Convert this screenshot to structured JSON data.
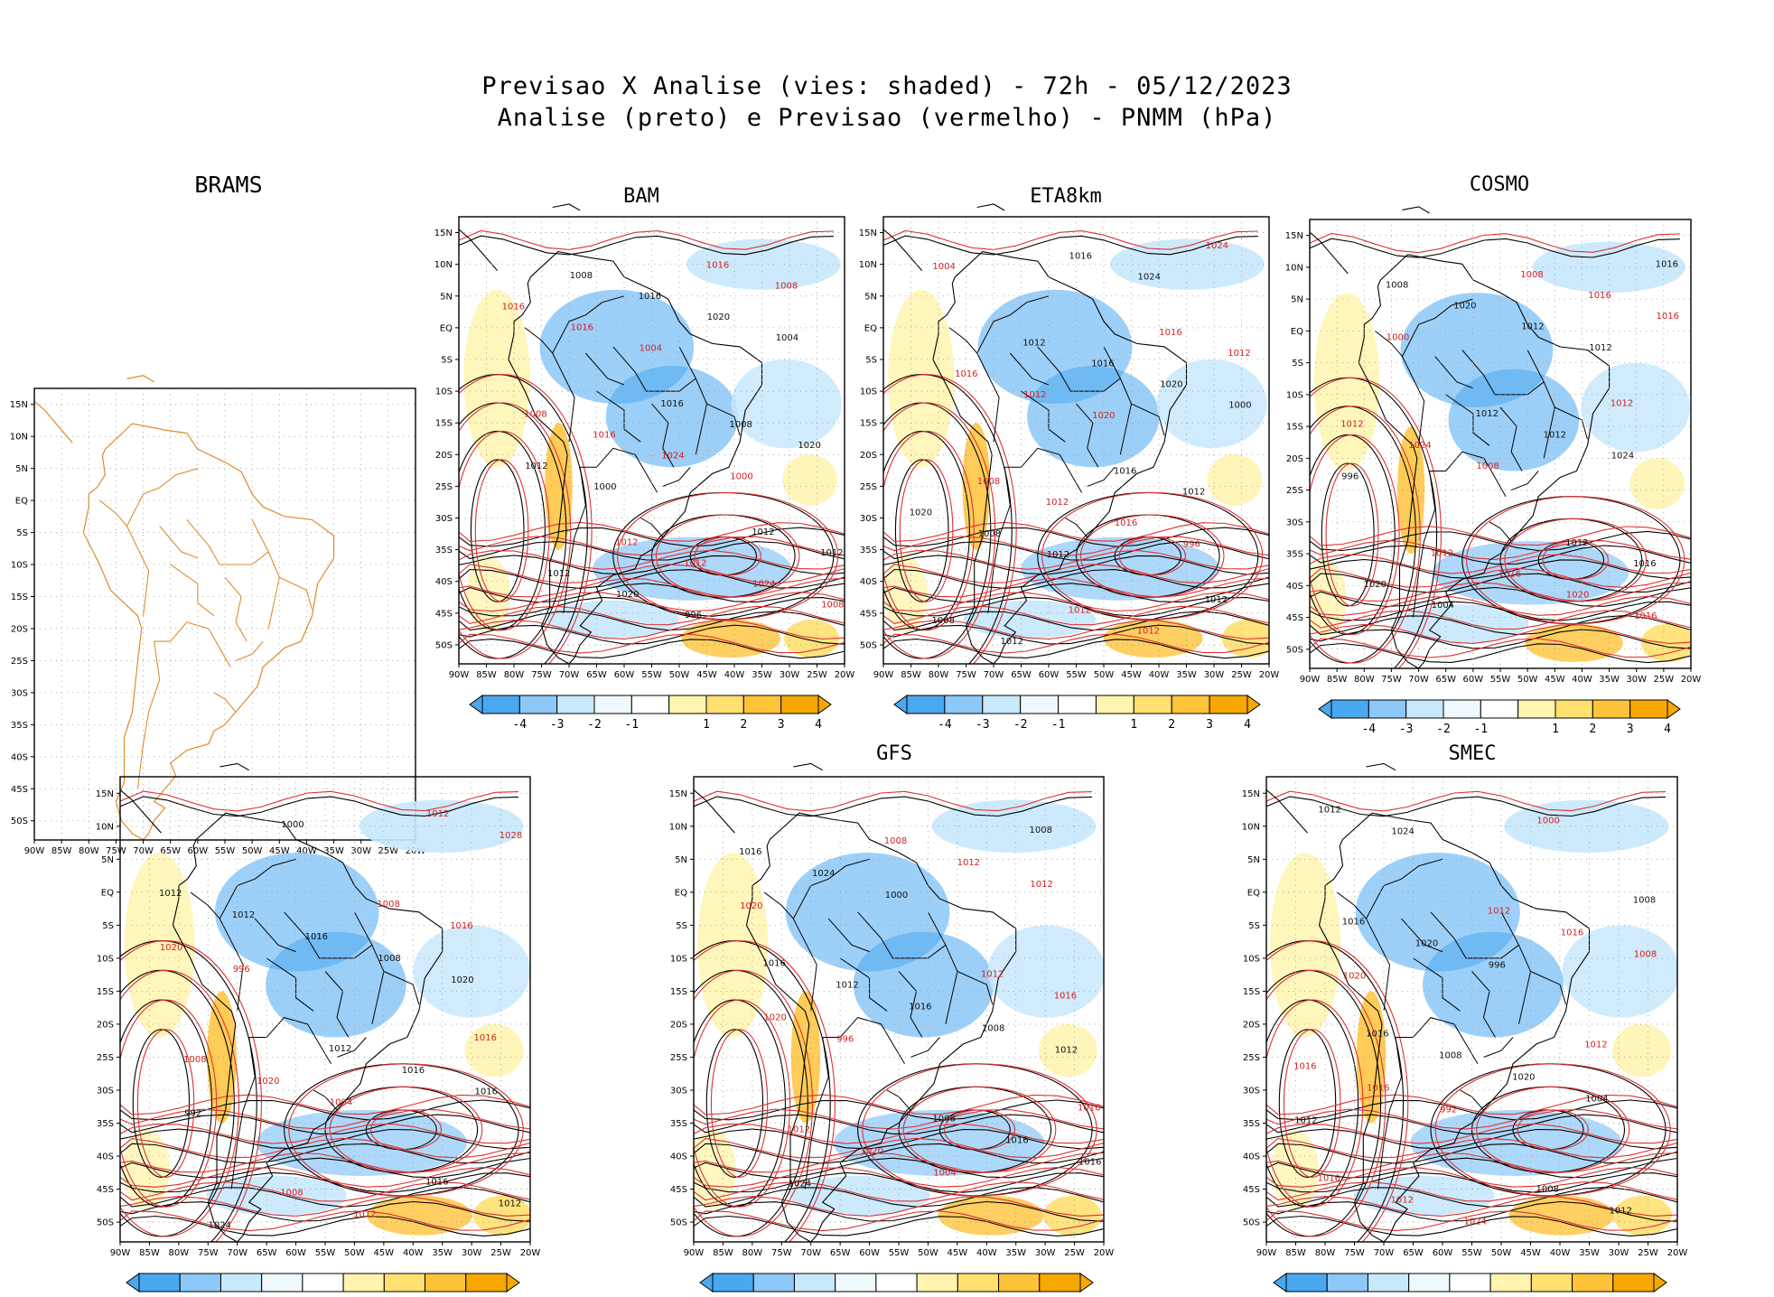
{
  "header": {
    "line1": "Previsao X Analise (vies: shaded) - 72h - 05/12/2023",
    "line2": "Analise (preto) e Previsao (vermelho) - PNMM (hPa)"
  },
  "axes": {
    "lon_labels": [
      "90W",
      "85W",
      "80W",
      "75W",
      "70W",
      "65W",
      "60W",
      "55W",
      "50W",
      "45W",
      "40W",
      "35W",
      "30W",
      "25W",
      "20W"
    ],
    "lat_labels": [
      "15N",
      "10N",
      "5N",
      "EQ",
      "5S",
      "10S",
      "15S",
      "20S",
      "25S",
      "30S",
      "35S",
      "40S",
      "45S",
      "50S"
    ]
  },
  "colorbar": {
    "labels": [
      "-4",
      "-3",
      "-2",
      "-1",
      "1",
      "2",
      "3",
      "4"
    ],
    "colors": [
      "#4aa8f0",
      "#8cc8f8",
      "#c8e8fc",
      "#eef8fd",
      "#ffffff",
      "#fff4b0",
      "#ffe070",
      "#ffc33a",
      "#f7a800"
    ]
  },
  "colors": {
    "analysis_contour": "#000000",
    "forecast_contour": "#e03030",
    "coastline_brams": "#e08a2a"
  },
  "panels": [
    {
      "id": "brams",
      "title": "BRAMS",
      "has_colorbar": false,
      "labels": []
    },
    {
      "id": "bam",
      "title": "BAM",
      "has_colorbar": true,
      "labels": [
        "1012",
        "1016",
        "1016",
        "1012",
        "1008",
        "1008",
        "1012",
        "1008",
        "1008",
        "1012",
        "1016",
        "1016",
        "1012",
        "1016",
        "1020",
        "1024",
        "1020",
        "1024",
        "1020",
        "1016",
        "1012",
        "1008",
        "1004",
        "1000",
        "996",
        "1004",
        "1000"
      ]
    },
    {
      "id": "eta8km",
      "title": "ETA8km",
      "has_colorbar": true,
      "labels": [
        "1012",
        "1016",
        "1016",
        "1012",
        "1012",
        "1008",
        "1008",
        "1012",
        "1012",
        "1012",
        "1016",
        "1012",
        "1012",
        "1016",
        "1020",
        "1024",
        "1020",
        "1016",
        "1016",
        "1012",
        "1008",
        "1004",
        "1000",
        "996",
        "1024",
        "1020",
        "1012"
      ]
    },
    {
      "id": "cosmo",
      "title": "COSMO",
      "has_colorbar": true,
      "labels": [
        "1016",
        "1012",
        "1012",
        "1008",
        "1012",
        "1012",
        "1008",
        "1012",
        "1016",
        "1016",
        "1012",
        "1016",
        "1020",
        "1024",
        "1020",
        "1016",
        "1024",
        "1020",
        "1012",
        "1008",
        "1004",
        "1000",
        "996",
        "1016",
        "1012"
      ]
    },
    {
      "id": "unnamed",
      "title": "",
      "has_colorbar": true,
      "labels": [
        "1012",
        "1016",
        "1016",
        "1008",
        "1012",
        "1008",
        "1012",
        "1008",
        "1012",
        "1016",
        "1016",
        "1012",
        "1016",
        "1020",
        "1024",
        "1020",
        "1016",
        "1012",
        "1008",
        "1004",
        "1000",
        "996",
        "992",
        "1028",
        "1020"
      ]
    },
    {
      "id": "gfs",
      "title": "GFS",
      "has_colorbar": true,
      "labels": [
        "1016",
        "1016",
        "1008",
        "1012",
        "1008",
        "1008",
        "1012",
        "1012",
        "1016",
        "1016",
        "1016",
        "1012",
        "1016",
        "1020",
        "1024",
        "1020",
        "1016",
        "1012",
        "1008",
        "1004",
        "1000",
        "996",
        "1024",
        "1020",
        "1012"
      ]
    },
    {
      "id": "smec",
      "title": "SMEC",
      "has_colorbar": true,
      "labels": [
        "1016",
        "1016",
        "1008",
        "1012",
        "1008",
        "1012",
        "1008",
        "1012",
        "1016",
        "1016",
        "1012",
        "1016",
        "1020",
        "1024",
        "1020",
        "1016",
        "1012",
        "1008",
        "1004",
        "1000",
        "996",
        "992",
        "1024",
        "1020",
        "1012"
      ]
    }
  ]
}
